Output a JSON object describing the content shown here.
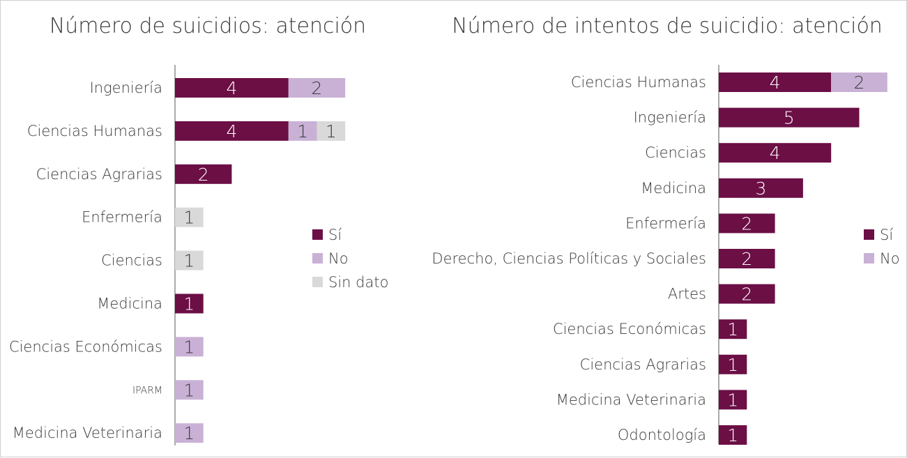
{
  "colors": {
    "si": "#6b0f45",
    "no": "#c9b1d6",
    "sin_dato": "#d9d9d9",
    "axis": "#555555",
    "text": "#3a3a3a"
  },
  "chart_data": [
    {
      "type": "bar",
      "orientation": "horizontal",
      "stacked": true,
      "title": "Número de suicidios: atención",
      "categories": [
        "Ingeniería",
        "Ciencias Humanas",
        "Ciencias Agrarias",
        "Enfermería",
        "Ciencias",
        "Medicina",
        "Ciencias Económicas",
        "IPARM",
        "Medicina Veterinaria"
      ],
      "series": [
        {
          "name": "Sí",
          "color_key": "si",
          "values": [
            4,
            4,
            2,
            0,
            0,
            1,
            0,
            0,
            0
          ]
        },
        {
          "name": "No",
          "color_key": "no",
          "values": [
            2,
            1,
            0,
            0,
            0,
            0,
            1,
            1,
            1
          ]
        },
        {
          "name": "Sin dato",
          "color_key": "sin_dato",
          "values": [
            0,
            1,
            0,
            1,
            1,
            0,
            0,
            0,
            0
          ]
        }
      ],
      "legend": [
        "Sí",
        "No",
        "Sin dato"
      ],
      "legend_position": "right"
    },
    {
      "type": "bar",
      "orientation": "horizontal",
      "stacked": true,
      "title": "Número de intentos de suicidio: atención",
      "categories": [
        "Ciencias Humanas",
        "Ingeniería",
        "Ciencias",
        "Medicina",
        "Enfermería",
        "Derecho, Ciencias Políticas y Sociales",
        "Artes",
        "Ciencias Económicas",
        "Ciencias Agrarias",
        "Medicina Veterinaria",
        "Odontología"
      ],
      "series": [
        {
          "name": "Sí",
          "color_key": "si",
          "values": [
            4,
            5,
            4,
            3,
            2,
            2,
            2,
            1,
            1,
            1,
            1
          ]
        },
        {
          "name": "No",
          "color_key": "no",
          "values": [
            2,
            0,
            0,
            0,
            0,
            0,
            0,
            0,
            0,
            0,
            0
          ]
        }
      ],
      "legend": [
        "Sí",
        "No"
      ],
      "legend_position": "right"
    }
  ]
}
